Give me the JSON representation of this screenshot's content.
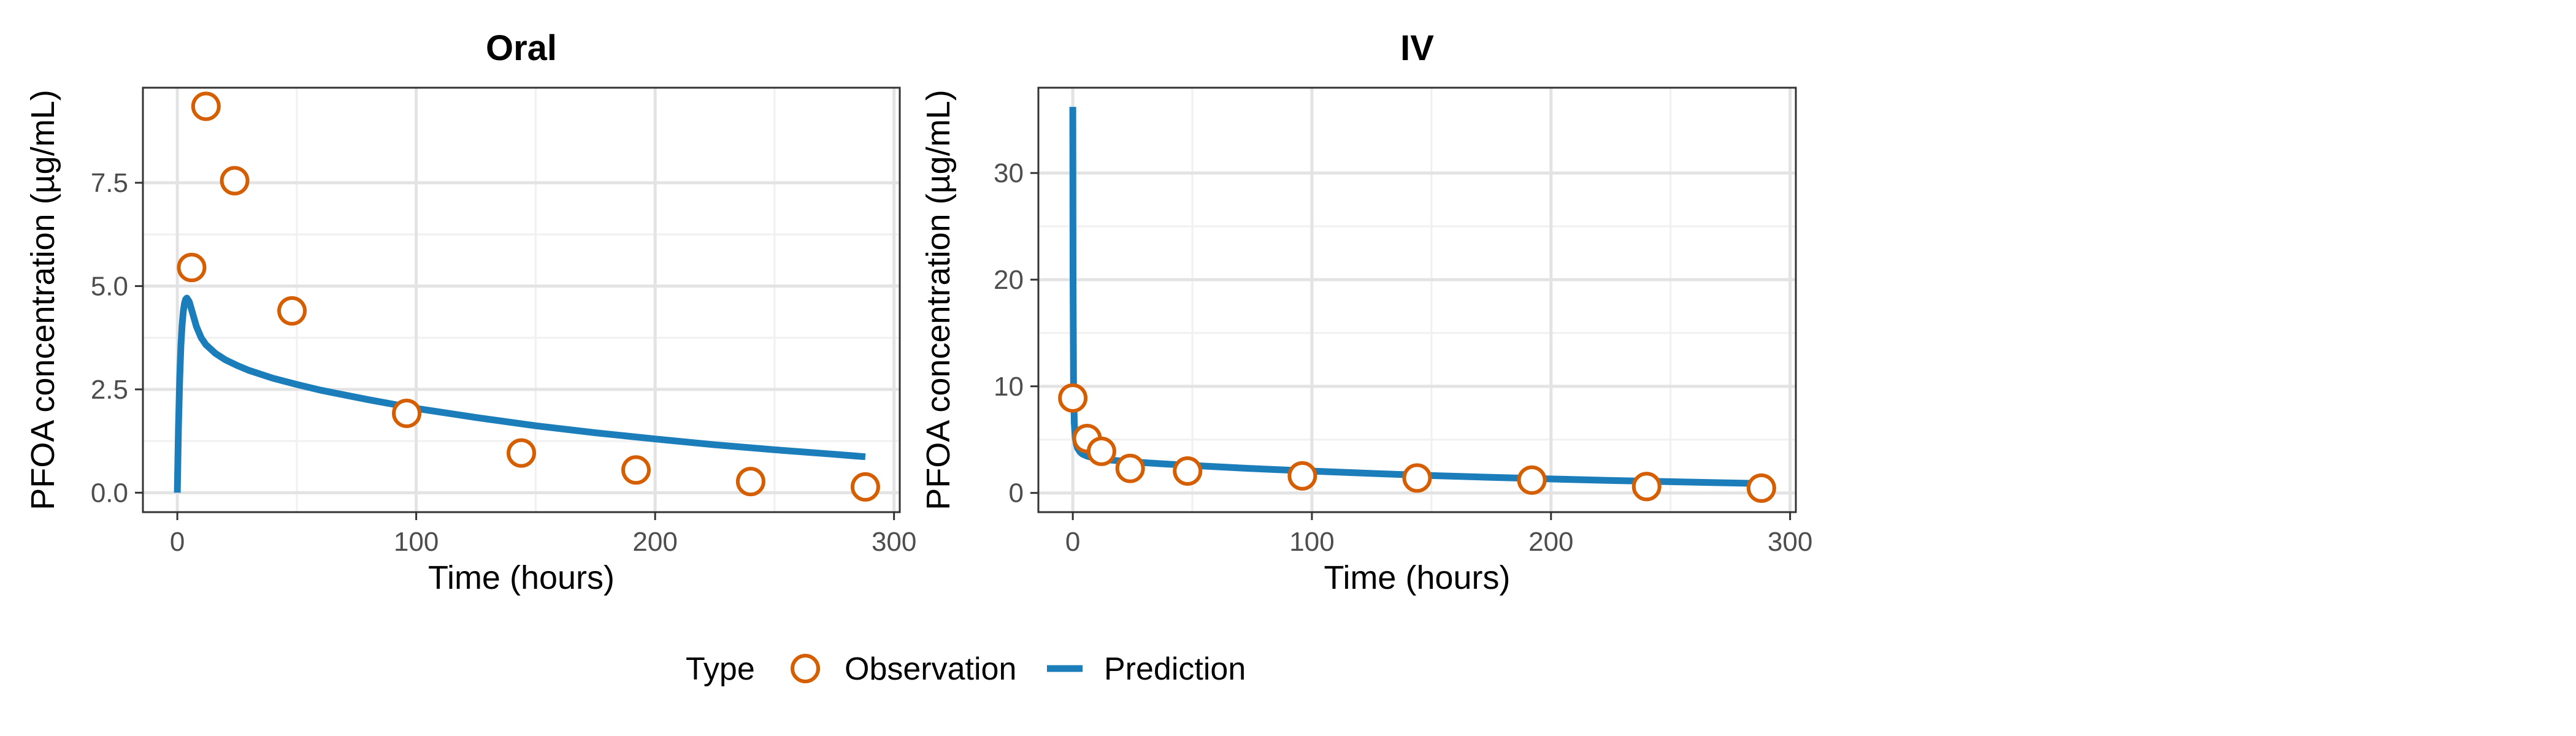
{
  "colors": {
    "observation": "#D55E00",
    "prediction": "#1B7EBB"
  },
  "legend": {
    "title": "Type",
    "items": [
      {
        "label": "Observation",
        "kind": "point"
      },
      {
        "label": "Prediction",
        "kind": "line"
      }
    ]
  },
  "chart_data": [
    {
      "type": "scatter",
      "title": "Oral",
      "xlabel": "Time (hours)",
      "ylabel": "PFOA concentration (µg/mL)",
      "xlim": [
        -14.4,
        302.4
      ],
      "ylim": [
        -0.47,
        9.8
      ],
      "x_ticks": [
        0,
        100,
        200,
        300
      ],
      "x_tick_labels": [
        "0",
        "100",
        "200",
        "300"
      ],
      "y_ticks": [
        0,
        2.5,
        5,
        7.5
      ],
      "y_tick_labels": [
        "0.0",
        "2.5",
        "5.0",
        "7.5"
      ],
      "grid": true,
      "legend_position": "bottom",
      "series": [
        {
          "name": "Observation",
          "type": "scatter",
          "x": [
            6,
            12,
            24,
            48,
            96,
            144,
            192,
            240,
            288
          ],
          "y": [
            5.45,
            9.35,
            7.55,
            4.4,
            1.92,
            0.96,
            0.55,
            0.27,
            0.14
          ]
        },
        {
          "name": "Prediction",
          "type": "line",
          "x": [
            0,
            0.5,
            1,
            1.5,
            2,
            2.5,
            3,
            3.5,
            4,
            5,
            6,
            8,
            10,
            12,
            16,
            20,
            25,
            30,
            40,
            50,
            60,
            80,
            100,
            125,
            150,
            175,
            200,
            225,
            250,
            275,
            288
          ],
          "y": [
            0,
            1.6,
            2.75,
            3.55,
            4.05,
            4.38,
            4.58,
            4.68,
            4.71,
            4.62,
            4.42,
            4.02,
            3.75,
            3.58,
            3.37,
            3.22,
            3.08,
            2.96,
            2.77,
            2.62,
            2.48,
            2.25,
            2.04,
            1.82,
            1.62,
            1.45,
            1.3,
            1.16,
            1.04,
            0.93,
            0.87
          ]
        }
      ]
    },
    {
      "type": "scatter",
      "title": "IV",
      "xlabel": "Time (hours)",
      "ylabel": "PFOA concentration (µg/mL)",
      "xlim": [
        -14.4,
        302.4
      ],
      "ylim": [
        -1.8,
        38
      ],
      "x_ticks": [
        0,
        100,
        200,
        300
      ],
      "x_tick_labels": [
        "0",
        "100",
        "200",
        "300"
      ],
      "y_ticks": [
        0,
        10,
        20,
        30
      ],
      "y_tick_labels": [
        "0",
        "10",
        "20",
        "30"
      ],
      "grid": true,
      "legend_position": "bottom",
      "series": [
        {
          "name": "Observation",
          "type": "scatter",
          "x": [
            0,
            6,
            12,
            24,
            48,
            96,
            144,
            192,
            240,
            288
          ],
          "y": [
            8.9,
            5.1,
            3.9,
            2.3,
            2.05,
            1.6,
            1.4,
            1.2,
            0.6,
            0.45
          ]
        },
        {
          "name": "Prediction",
          "type": "line",
          "x": [
            0,
            0.1,
            0.3,
            0.6,
            1,
            1.5,
            2,
            3,
            4,
            6,
            8,
            12,
            16,
            24,
            36,
            48,
            72,
            96,
            125,
            150,
            175,
            200,
            225,
            250,
            275,
            288
          ],
          "y": [
            36.2,
            20.5,
            10.5,
            6.6,
            5.2,
            4.55,
            4.2,
            3.85,
            3.65,
            3.45,
            3.33,
            3.18,
            3.08,
            2.92,
            2.75,
            2.6,
            2.32,
            2.08,
            1.83,
            1.63,
            1.46,
            1.31,
            1.17,
            1.05,
            0.94,
            0.88
          ]
        }
      ]
    }
  ]
}
